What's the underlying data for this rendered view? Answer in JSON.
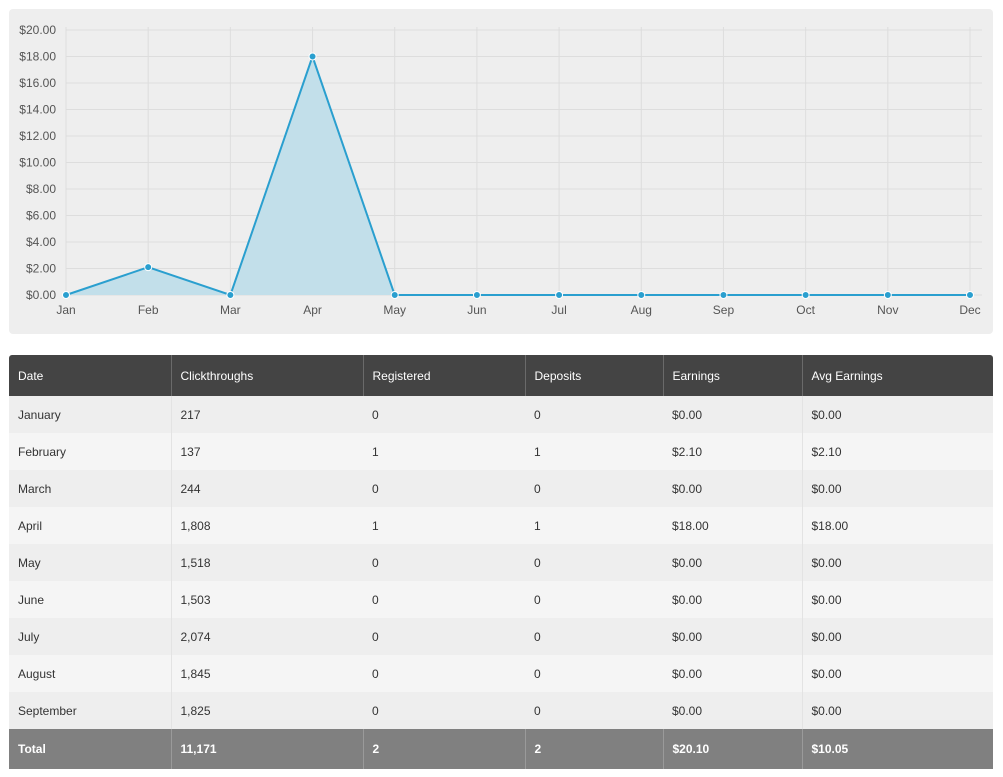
{
  "chart_data": {
    "type": "area",
    "title": "",
    "xlabel": "",
    "ylabel": "",
    "categories": [
      "Jan",
      "Feb",
      "Mar",
      "Apr",
      "May",
      "Jun",
      "Jul",
      "Aug",
      "Sep",
      "Oct",
      "Nov",
      "Dec"
    ],
    "y_ticks": [
      "$0.00",
      "$2.00",
      "$4.00",
      "$6.00",
      "$8.00",
      "$10.00",
      "$12.00",
      "$14.00",
      "$16.00",
      "$18.00",
      "$20.00"
    ],
    "ylim": [
      0,
      20
    ],
    "grid": true,
    "series": [
      {
        "values": [
          0,
          2.1,
          0,
          18,
          0,
          0,
          0,
          0,
          0,
          0,
          0,
          0
        ]
      }
    ],
    "colors": {
      "line": "#2a9fcf",
      "fill": "#c2dfea",
      "point": "#2a9fcf"
    }
  },
  "table": {
    "headers": [
      "Date",
      "Clickthroughs",
      "Registered",
      "Deposits",
      "Earnings",
      "Avg Earnings"
    ],
    "rows": [
      [
        "January",
        "217",
        "0",
        "0",
        "$0.00",
        "$0.00"
      ],
      [
        "February",
        "137",
        "1",
        "1",
        "$2.10",
        "$2.10"
      ],
      [
        "March",
        "244",
        "0",
        "0",
        "$0.00",
        "$0.00"
      ],
      [
        "April",
        "1,808",
        "1",
        "1",
        "$18.00",
        "$18.00"
      ],
      [
        "May",
        "1,518",
        "0",
        "0",
        "$0.00",
        "$0.00"
      ],
      [
        "June",
        "1,503",
        "0",
        "0",
        "$0.00",
        "$0.00"
      ],
      [
        "July",
        "2,074",
        "0",
        "0",
        "$0.00",
        "$0.00"
      ],
      [
        "August",
        "1,845",
        "0",
        "0",
        "$0.00",
        "$0.00"
      ],
      [
        "September",
        "1,825",
        "0",
        "0",
        "$0.00",
        "$0.00"
      ]
    ],
    "total": [
      "Total",
      "11,171",
      "2",
      "2",
      "$20.10",
      "$10.05"
    ]
  }
}
